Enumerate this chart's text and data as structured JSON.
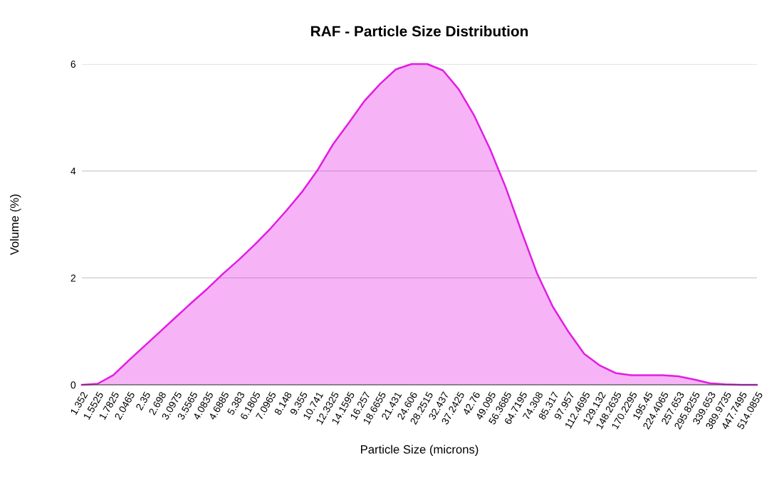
{
  "chart_data": {
    "type": "area",
    "title": "RAF - Particle Size Distribution",
    "xlabel": "Particle Size (microns)",
    "ylabel": "Volume (%)",
    "categories": [
      "1.352",
      "1.5525",
      "1.7825",
      "2.0465",
      "2.35",
      "2.698",
      "3.0975",
      "3.5565",
      "4.0835",
      "4.6885",
      "5.383",
      "6.1805",
      "7.0965",
      "8.148",
      "9.355",
      "10.741",
      "12.3325",
      "14.1595",
      "16.257",
      "18.6655",
      "21.431",
      "24.606",
      "28.2515",
      "32.437",
      "37.2425",
      "42.76",
      "49.095",
      "56.3685",
      "64.7195",
      "74.308",
      "85.317",
      "97.957",
      "112.4695",
      "129.132",
      "148.2635",
      "170.2295",
      "195.45",
      "224.4065",
      "257.653",
      "295.8255",
      "339.653",
      "389.9735",
      "447.7495",
      "514.0855"
    ],
    "series": [
      {
        "color": "#e31ce3",
        "values": [
          0,
          0.02,
          0.18,
          0.46,
          0.73,
          1.0,
          1.27,
          1.54,
          1.8,
          2.08,
          2.34,
          2.62,
          2.92,
          3.25,
          3.6,
          4.01,
          4.5,
          4.9,
          5.31,
          5.63,
          5.9,
          6.0,
          6.0,
          5.88,
          5.53,
          5.03,
          4.41,
          3.69,
          2.87,
          2.08,
          1.46,
          0.99,
          0.58,
          0.36,
          0.22,
          0.18,
          0.18,
          0.18,
          0.16,
          0.1,
          0.03,
          0.01,
          0,
          0
        ]
      }
    ],
    "ylim": [
      0,
      6
    ],
    "yticks": [
      0,
      2,
      4,
      6
    ],
    "grid": "y",
    "legend": false
  }
}
